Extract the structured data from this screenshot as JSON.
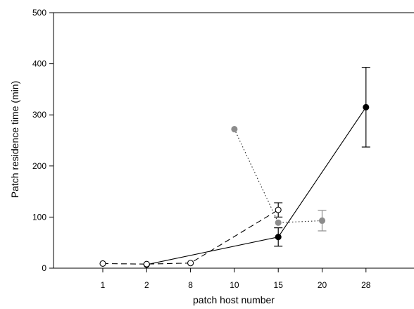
{
  "chart_data": {
    "type": "line",
    "xlabel": "patch host number",
    "ylabel": "Patch residence time (min)",
    "categories": [
      "1",
      "2",
      "8",
      "10",
      "15",
      "20",
      "28"
    ],
    "ylim": [
      0,
      500
    ],
    "yticks": [
      0,
      100,
      200,
      300,
      400,
      500
    ],
    "grid": false,
    "series": [
      {
        "style": "solid line, filled black circles",
        "color": "#000000",
        "points": [
          {
            "x": "2",
            "y": 7
          },
          {
            "x": "15",
            "y": 61,
            "err_low": 43,
            "err_high": 79
          },
          {
            "x": "28",
            "y": 315,
            "err_low": 237,
            "err_high": 393
          }
        ]
      },
      {
        "style": "dashed line, open circles",
        "color": "#000000",
        "points": [
          {
            "x": "1",
            "y": 9
          },
          {
            "x": "2",
            "y": 8
          },
          {
            "x": "8",
            "y": 10
          },
          {
            "x": "15",
            "y": 114,
            "err_low": 100,
            "err_high": 128
          }
        ]
      },
      {
        "style": "dotted line, filled gray circles",
        "color": "#8c8c8c",
        "points": [
          {
            "x": "10",
            "y": 272
          },
          {
            "x": "15",
            "y": 89
          },
          {
            "x": "20",
            "y": 93,
            "err_low": 73,
            "err_high": 113
          }
        ]
      }
    ]
  }
}
